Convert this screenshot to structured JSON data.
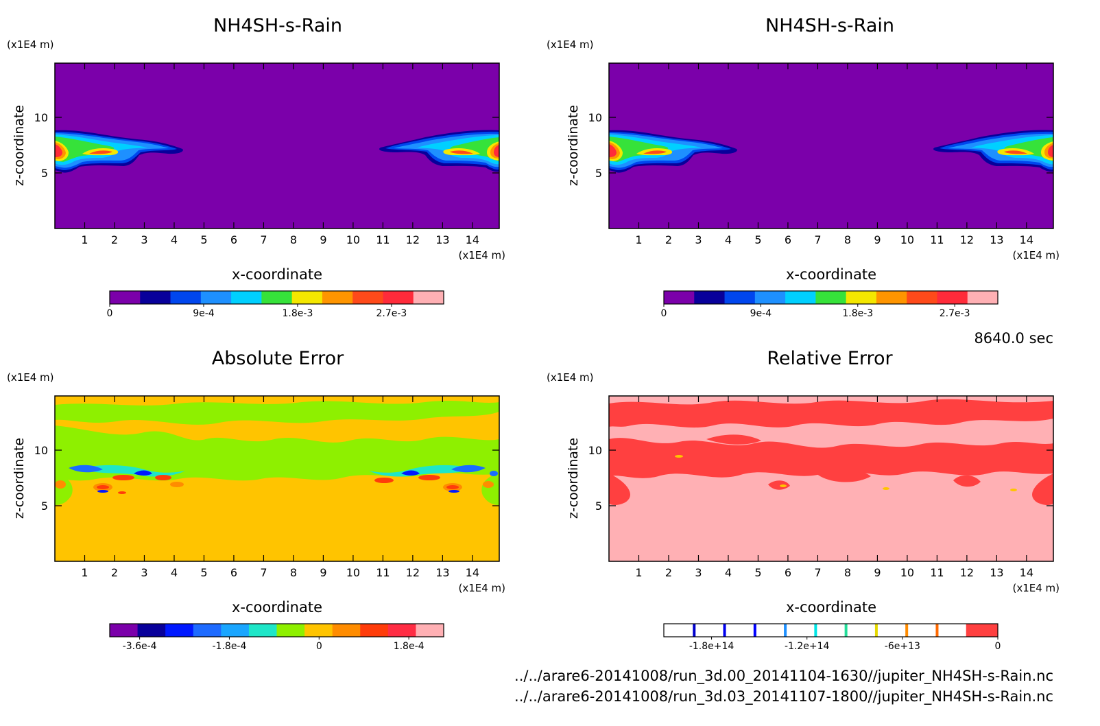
{
  "chart_data": [
    {
      "type": "heatmap",
      "title": "NH4SH-s-Rain",
      "xlabel": "x-coordinate",
      "ylabel": "z-coordinate",
      "x_unit": "(x1E4 m)",
      "y_unit": "(x1E4 m)",
      "xlim": [
        0,
        14.9
      ],
      "ylim": [
        0,
        15
      ],
      "x_ticks": [
        "1",
        "2",
        "3",
        "4",
        "5",
        "6",
        "7",
        "8",
        "9",
        "10",
        "11",
        "12",
        "13",
        "14"
      ],
      "y_ticks": [
        "5",
        "10"
      ],
      "background_color": "#7b00aa",
      "colorbar": {
        "colors": [
          "#7b00aa",
          "#08009a",
          "#0046ee",
          "#1e90ff",
          "#00d0ff",
          "#36e23a",
          "#f4e700",
          "#ff9500",
          "#ff4a1a",
          "#ff2b3a",
          "#ffb0b4"
        ],
        "tick_labels": [
          "0",
          "9e-4",
          "1.8e-3",
          "2.7e-3"
        ],
        "tick_values": [
          0,
          0.0009,
          0.0018,
          0.0027
        ],
        "range": [
          0,
          0.0032
        ]
      }
    },
    {
      "type": "heatmap",
      "title": "NH4SH-s-Rain",
      "xlabel": "x-coordinate",
      "ylabel": "z-coordinate",
      "x_unit": "(x1E4 m)",
      "y_unit": "(x1E4 m)",
      "xlim": [
        0,
        14.9
      ],
      "ylim": [
        0,
        15
      ],
      "x_ticks": [
        "1",
        "2",
        "3",
        "4",
        "5",
        "6",
        "7",
        "8",
        "9",
        "10",
        "11",
        "12",
        "13",
        "14"
      ],
      "y_ticks": [
        "5",
        "10"
      ],
      "background_color": "#7b00aa",
      "colorbar": {
        "colors": [
          "#7b00aa",
          "#08009a",
          "#0046ee",
          "#1e90ff",
          "#00d0ff",
          "#36e23a",
          "#f4e700",
          "#ff9500",
          "#ff4a1a",
          "#ff2b3a",
          "#ffb0b4"
        ],
        "tick_labels": [
          "0",
          "9e-4",
          "1.8e-3",
          "2.7e-3"
        ],
        "tick_values": [
          0,
          0.0009,
          0.0018,
          0.0027
        ],
        "range": [
          0,
          0.0031
        ]
      }
    },
    {
      "type": "heatmap",
      "title": "Absolute Error",
      "xlabel": "x-coordinate",
      "ylabel": "z-coordinate",
      "x_unit": "(x1E4 m)",
      "y_unit": "(x1E4 m)",
      "xlim": [
        0,
        14.9
      ],
      "ylim": [
        0,
        15
      ],
      "x_ticks": [
        "1",
        "2",
        "3",
        "4",
        "5",
        "6",
        "7",
        "8",
        "9",
        "10",
        "11",
        "12",
        "13",
        "14"
      ],
      "y_ticks": [
        "5",
        "10"
      ],
      "background_color": "#ffc400",
      "colorbar": {
        "colors": [
          "#7b00aa",
          "#08009a",
          "#0018ff",
          "#1e6bff",
          "#1aa6ff",
          "#1ee6c8",
          "#8ef000",
          "#ffc400",
          "#ff8c00",
          "#ff3c0a",
          "#ff2d44",
          "#ffb0b4"
        ],
        "tick_labels": [
          "-3.6e-4",
          "-1.8e-4",
          "0",
          "1.8e-4"
        ],
        "tick_values": [
          -0.00036,
          -0.00018,
          0,
          0.00018
        ],
        "range": [
          -0.00042,
          0.00025
        ]
      }
    },
    {
      "type": "heatmap",
      "title": "Relative Error",
      "xlabel": "x-coordinate",
      "ylabel": "z-coordinate",
      "x_unit": "(x1E4 m)",
      "y_unit": "(x1E4 m)",
      "xlim": [
        0,
        14.9
      ],
      "ylim": [
        0,
        15
      ],
      "x_ticks": [
        "1",
        "2",
        "3",
        "4",
        "5",
        "6",
        "7",
        "8",
        "9",
        "10",
        "11",
        "12",
        "13",
        "14"
      ],
      "y_ticks": [
        "5",
        "10"
      ],
      "background_color": "#ffb0b4",
      "colorbar": {
        "colors": [
          "#ffffff",
          "#ffffff",
          "#ffffff",
          "#ffffff",
          "#ffffff",
          "#ffffff",
          "#ffffff",
          "#ffffff",
          "#ffffff",
          "#ffffff",
          "#ff4040"
        ],
        "boundary_colors": [
          "#0000cc",
          "#0000ee",
          "#0000ff",
          "#1e90ff",
          "#00e5e5",
          "#22dd99",
          "#e5d800",
          "#ff8c00",
          "#ff6a00",
          "#ff4040"
        ],
        "tick_labels": [
          "-1.8e+14",
          "-1.2e+14",
          "-6e+13",
          "0"
        ],
        "tick_values": [
          -180000000000000.0,
          -120000000000000.0,
          -60000000000000.0,
          0
        ],
        "range": [
          -210000000000000.0,
          0
        ]
      }
    }
  ],
  "time_label": "8640.0 sec",
  "files": [
    "../../arare6-20141008/run_3d.00_20141104-1630//jupiter_NH4SH-s-Rain.nc",
    "../../arare6-20141008/run_3d.03_20141107-1800//jupiter_NH4SH-s-Rain.nc"
  ]
}
